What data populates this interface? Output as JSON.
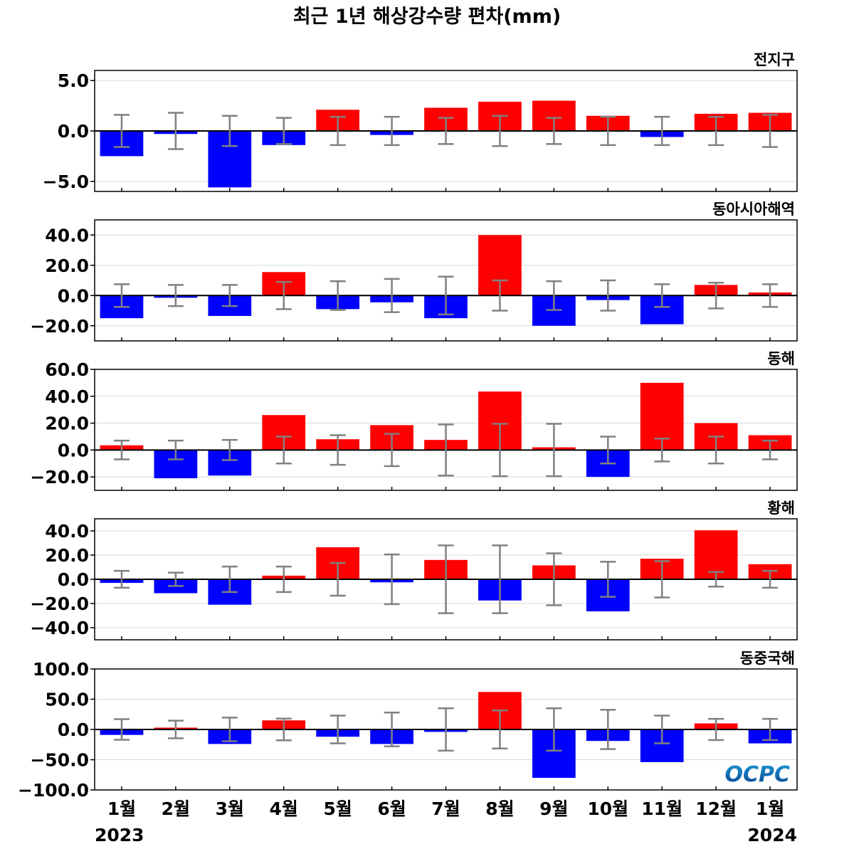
{
  "chart_data": {
    "type": "bar",
    "title": "최근 1년 해상강수량 편차(mm)",
    "categories": [
      "1월",
      "2월",
      "3월",
      "4월",
      "5월",
      "6월",
      "7월",
      "8월",
      "9월",
      "10월",
      "11월",
      "12월",
      "1월"
    ],
    "years": {
      "start": "2023",
      "end": "2024"
    },
    "colors": {
      "positive": "#ff0000",
      "negative": "#0000ff",
      "error_bar": "#808080",
      "zero_line": "#000000",
      "grid": "#d9d9d9"
    },
    "panels": [
      {
        "name": "전지구",
        "ylim": [
          -6.0,
          6.0
        ],
        "yticks": [
          5.0,
          0.0,
          -5.0
        ],
        "tick_labels": [
          "5.0",
          "0.0",
          "−5.0"
        ],
        "values": [
          -2.5,
          -0.3,
          -5.6,
          -1.4,
          2.1,
          -0.4,
          2.3,
          2.9,
          3.0,
          1.5,
          -0.6,
          1.7,
          1.8
        ],
        "error": [
          1.6,
          1.8,
          1.5,
          1.3,
          1.4,
          1.4,
          1.3,
          1.5,
          1.3,
          1.4,
          1.4,
          1.4,
          1.6
        ]
      },
      {
        "name": "동아시아해역",
        "ylim": [
          -30.0,
          50.0
        ],
        "yticks": [
          40.0,
          20.0,
          0.0,
          -20.0
        ],
        "tick_labels": [
          "40.0",
          "20.0",
          "0.0",
          "−20.0"
        ],
        "values": [
          -15.0,
          -1.5,
          -13.5,
          15.5,
          -9.0,
          -4.5,
          -15.0,
          40.0,
          -20.0,
          -3.0,
          -19.0,
          7.0,
          2.0
        ],
        "error": [
          7.5,
          7.0,
          7.0,
          9.0,
          9.5,
          11.0,
          12.5,
          10.0,
          9.5,
          10.0,
          7.5,
          8.5,
          7.5
        ]
      },
      {
        "name": "동해",
        "ylim": [
          -30.0,
          60.0
        ],
        "yticks": [
          60.0,
          40.0,
          20.0,
          0.0,
          -20.0
        ],
        "tick_labels": [
          "60.0",
          "40.0",
          "20.0",
          "0.0",
          "−20.0"
        ],
        "values": [
          3.5,
          -21.0,
          -19.0,
          26.0,
          8.0,
          18.5,
          7.5,
          43.5,
          2.0,
          -20.0,
          50.0,
          20.0,
          11.0
        ],
        "error": [
          7.0,
          7.0,
          7.5,
          10.0,
          11.0,
          12.0,
          19.0,
          19.5,
          19.5,
          10.0,
          8.5,
          10.0,
          7.0
        ]
      },
      {
        "name": "황해",
        "ylim": [
          -50.0,
          50.0
        ],
        "yticks": [
          40.0,
          20.0,
          0.0,
          -20.0,
          -40.0
        ],
        "tick_labels": [
          "40.0",
          "20.0",
          "0.0",
          "−20.0",
          "−40.0"
        ],
        "values": [
          -3.0,
          -11.5,
          -21.0,
          3.0,
          26.5,
          -2.5,
          16.0,
          -17.5,
          11.5,
          -26.5,
          17.0,
          40.5,
          12.5
        ],
        "error": [
          7.0,
          5.5,
          10.5,
          10.5,
          13.5,
          20.5,
          28.0,
          28.0,
          21.5,
          14.5,
          15.0,
          6.0,
          7.0
        ]
      },
      {
        "name": "동중국해",
        "ylim": [
          -100.0,
          100.0
        ],
        "yticks": [
          100.0,
          50.0,
          0.0,
          -50.0,
          -100.0
        ],
        "tick_labels": [
          "100.0",
          "50.0",
          "0.0",
          "−50.0",
          "−100.0"
        ],
        "values": [
          -9.0,
          3.0,
          -24.0,
          15.0,
          -12.0,
          -24.0,
          -4.0,
          62.0,
          -80.0,
          -19.0,
          -54.0,
          10.0,
          -23.0
        ],
        "error": [
          17.0,
          14.5,
          19.5,
          18.0,
          23.0,
          28.0,
          35.0,
          31.5,
          35.0,
          32.5,
          23.0,
          17.5,
          17.5
        ]
      }
    ],
    "legend_placement": "none",
    "grid": true
  },
  "logo": {
    "text": "OCPC",
    "colors": [
      "#1a9ad6",
      "#0b3f8f"
    ]
  }
}
